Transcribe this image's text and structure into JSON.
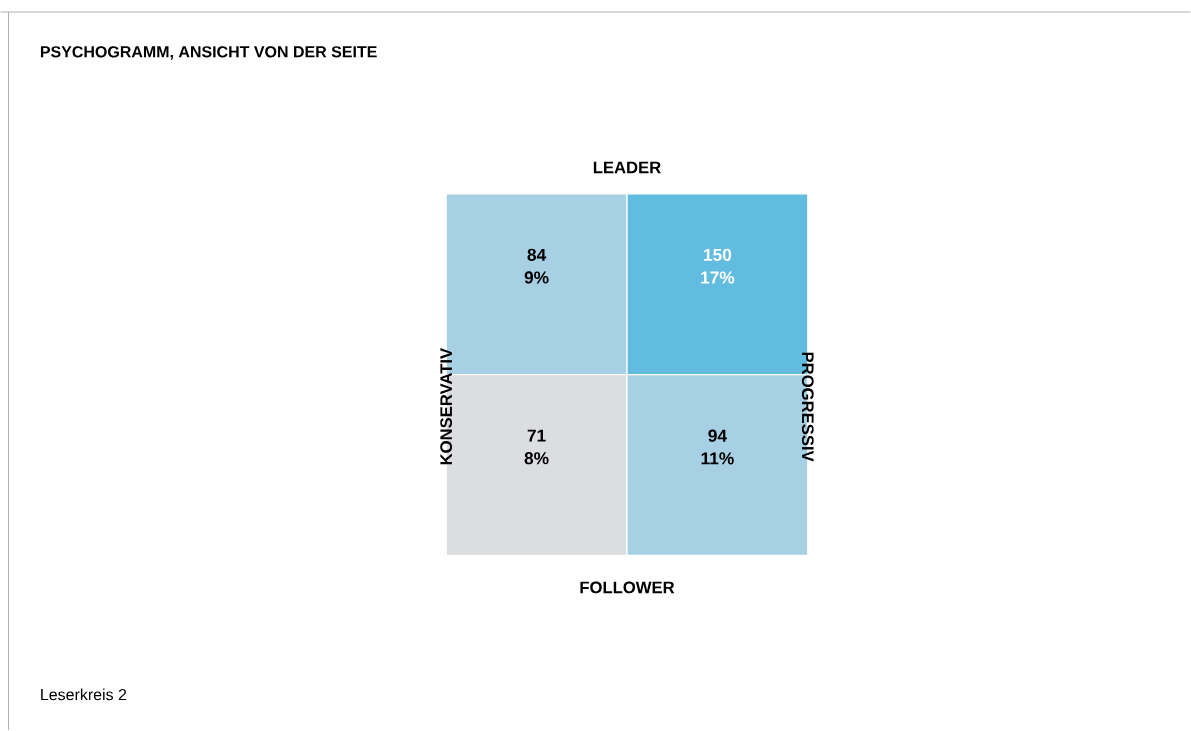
{
  "chart_data": {
    "type": "heatmap",
    "title": "PSYCHOGRAMM, ANSICHT VON DER SEITE",
    "x2label": "LEADER",
    "xlabel": "FOLLOWER",
    "ylabel": "KONSERVATIV",
    "y2label": "PROGRESSIV",
    "categories": [
      null,
      null
    ],
    "y_categories": [
      null,
      null
    ],
    "cells": [
      [
        84,
        150
      ],
      [
        71,
        94
      ]
    ],
    "colors": [
      [
        "#a8d0e4",
        "#62bce0"
      ],
      [
        "#dcdde0",
        "#a8d0e4"
      ]
    ],
    "data_labels": true,
    "annotations": [
      "9%",
      "17%",
      "8%",
      "11%",
      "Leserkreis 2"
    ]
  }
}
